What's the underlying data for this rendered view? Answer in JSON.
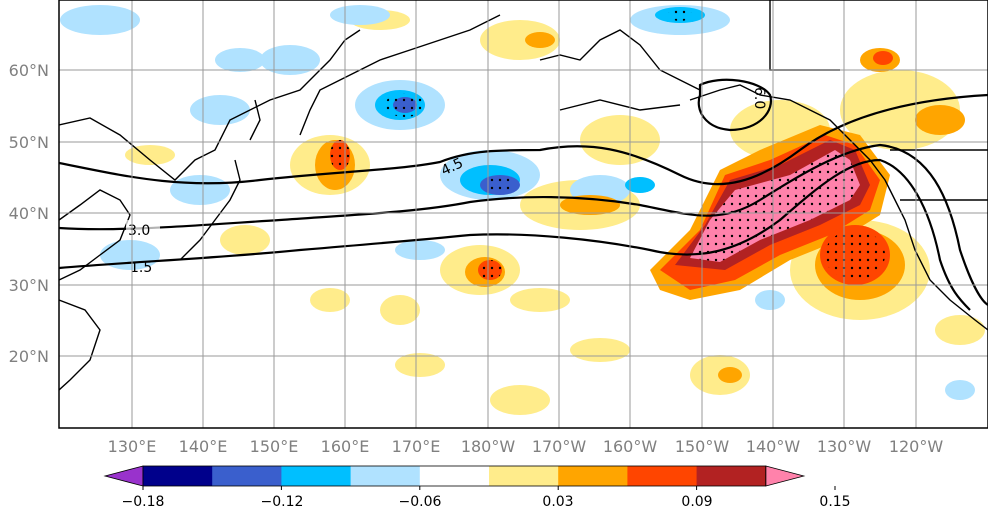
{
  "map": {
    "lat_labels": [
      "60°N",
      "50°N",
      "40°N",
      "30°N",
      "20°N"
    ],
    "lon_labels": [
      "130°E",
      "140°E",
      "150°E",
      "160°E",
      "170°E",
      "180°W",
      "170°W",
      "160°W",
      "150°W",
      "140°W",
      "130°W",
      "120°W"
    ],
    "contour_labels": [
      "3.0",
      "4.5",
      "6.0",
      "1.5"
    ]
  },
  "colorbar": {
    "tick_labels": [
      "−0.18",
      "−0.12",
      "−0.06",
      "0.03",
      "0.09",
      "0.15"
    ],
    "colors": [
      "#9932cc",
      "#00008b",
      "#3a5fcd",
      "#00bfff",
      "#b0e2ff",
      "#ffffff",
      "#ffec8b",
      "#ffa500",
      "#ff4500",
      "#b22222",
      "#ff82ab"
    ]
  }
}
